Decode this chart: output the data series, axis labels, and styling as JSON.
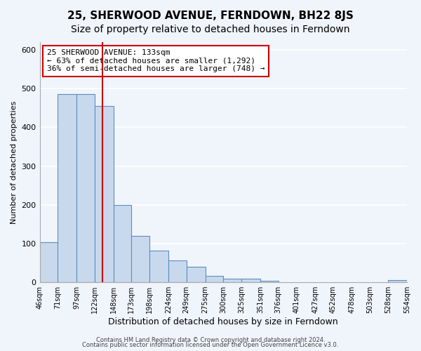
{
  "title": "25, SHERWOOD AVENUE, FERNDOWN, BH22 8JS",
  "subtitle": "Size of property relative to detached houses in Ferndown",
  "xlabel": "Distribution of detached houses by size in Ferndown",
  "ylabel": "Number of detached properties",
  "bin_edges": [
    46,
    71,
    97,
    122,
    148,
    173,
    198,
    224,
    249,
    275,
    300,
    325,
    351,
    376,
    401,
    427,
    452,
    478,
    503,
    528,
    554
  ],
  "bin_labels": [
    "46sqm",
    "71sqm",
    "97sqm",
    "122sqm",
    "148sqm",
    "173sqm",
    "198sqm",
    "224sqm",
    "249sqm",
    "275sqm",
    "300sqm",
    "325sqm",
    "351sqm",
    "376sqm",
    "401sqm",
    "427sqm",
    "452sqm",
    "478sqm",
    "503sqm",
    "528sqm",
    "554sqm"
  ],
  "counts": [
    103,
    485,
    485,
    455,
    200,
    120,
    82,
    57,
    40,
    16,
    10,
    10,
    3,
    1,
    1,
    1,
    1,
    0,
    1,
    5
  ],
  "bar_color": "#c9d9ed",
  "bar_edge_color": "#5a8fc2",
  "property_sqm": 133,
  "vline_color": "#cc0000",
  "annotation_title": "25 SHERWOOD AVENUE: 133sqm",
  "annotation_line1": "← 63% of detached houses are smaller (1,292)",
  "annotation_line2": "36% of semi-detached houses are larger (748) →",
  "annotation_box_edge": "#cc0000",
  "ylim": [
    0,
    620
  ],
  "footer1": "Contains HM Land Registry data © Crown copyright and database right 2024.",
  "footer2": "Contains public sector information licensed under the Open Government Licence v3.0.",
  "bg_color": "#f0f4fb",
  "grid_color": "#ffffff",
  "title_fontsize": 11,
  "subtitle_fontsize": 10
}
